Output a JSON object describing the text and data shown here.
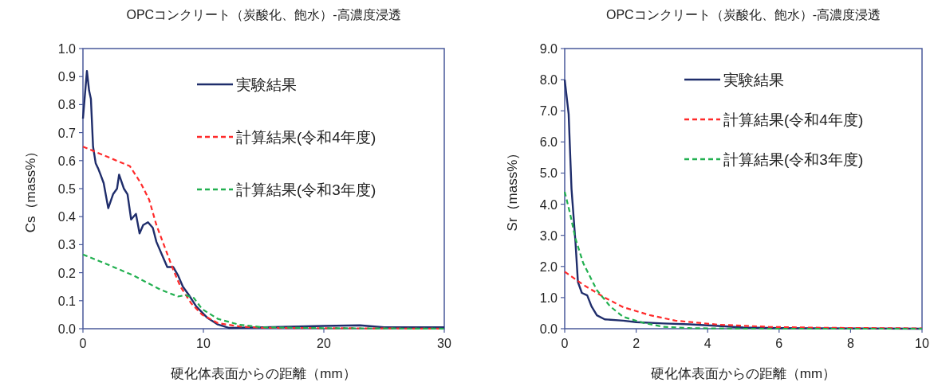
{
  "chart_data": [
    {
      "type": "line",
      "title": "OPCコンクリート（炭酸化、飽水）-高濃度浸透",
      "xlabel": "硬化体表面からの距離（mm）",
      "ylabel": "Cs（mass%）",
      "legend": "top right",
      "grid": false,
      "marker": "none",
      "xlim": [
        0,
        30
      ],
      "xticks": [
        0,
        10,
        20,
        30
      ],
      "ylim": [
        0,
        1.0
      ],
      "yticks": [
        {
          "value": 0,
          "label": "0.0"
        },
        0.1,
        0.2,
        0.3,
        0.4,
        0.5,
        0.6,
        0.7,
        0.8,
        0.9,
        {
          "value": 1.0,
          "label": "1.0"
        }
      ],
      "series": [
        {
          "name": "実験結果",
          "color": "#1f2d6b",
          "line_style": "solid",
          "x": [
            0,
            0.33,
            0.51,
            0.66,
            0.84,
            1.06,
            1.28,
            1.46,
            1.72,
            2.1,
            2.5,
            2.83,
            3.0,
            3.4,
            3.7,
            4.0,
            4.4,
            4.7,
            5.0,
            5.4,
            5.8,
            6.1,
            6.6,
            7.0,
            7.5,
            7.9,
            8.3,
            8.8,
            9.4,
            10.3,
            11.2,
            12.1,
            15,
            20,
            23,
            25,
            30
          ],
          "values": [
            0.75,
            0.92,
            0.85,
            0.82,
            0.65,
            0.59,
            0.57,
            0.55,
            0.52,
            0.43,
            0.48,
            0.5,
            0.55,
            0.5,
            0.48,
            0.39,
            0.41,
            0.34,
            0.37,
            0.38,
            0.36,
            0.31,
            0.26,
            0.22,
            0.22,
            0.19,
            0.15,
            0.12,
            0.08,
            0.04,
            0.015,
            0.003,
            0.005,
            0.01,
            0.012,
            0.005,
            0.005
          ]
        },
        {
          "name": "計算結果(令和4年度)",
          "color": "#ff2a2a",
          "line_style": "dashed",
          "x": [
            0,
            3.9,
            4.8,
            5.5,
            6.1,
            6.8,
            7.5,
            8.1,
            9.0,
            9.9,
            11.2,
            13.0,
            15,
            30
          ],
          "values": [
            0.65,
            0.58,
            0.52,
            0.46,
            0.37,
            0.29,
            0.21,
            0.15,
            0.09,
            0.05,
            0.02,
            0.008,
            0.003,
            0
          ]
        },
        {
          "name": "計算結果(令和3年度)",
          "color": "#22b050",
          "line_style": "dashed",
          "x": [
            0,
            2.0,
            4.2,
            6.4,
            7.9,
            8.5,
            9.2,
            9.9,
            11.2,
            13.0,
            15,
            20,
            30
          ],
          "values": [
            0.265,
            0.23,
            0.19,
            0.14,
            0.115,
            0.12,
            0.11,
            0.07,
            0.035,
            0.014,
            0.005,
            0.002,
            0
          ]
        }
      ]
    },
    {
      "type": "line",
      "title": "OPCコンクリート（炭酸化、飽水）-高濃度浸透",
      "xlabel": "硬化体表面からの距離（mm）",
      "ylabel": "Sr（mass%）",
      "legend": "top right",
      "grid": false,
      "marker": "none",
      "xlim": [
        0,
        10
      ],
      "xticks": [
        0,
        2,
        4,
        6,
        8,
        10
      ],
      "ylim": [
        0,
        9.0
      ],
      "yticks": [
        {
          "value": 0,
          "label": "0.0"
        },
        {
          "value": 1,
          "label": "1.0"
        },
        {
          "value": 2,
          "label": "2.0"
        },
        {
          "value": 3,
          "label": "3.0"
        },
        {
          "value": 4,
          "label": "4.0"
        },
        {
          "value": 5,
          "label": "5.0"
        },
        {
          "value": 6,
          "label": "6.0"
        },
        {
          "value": 7,
          "label": "7.0"
        },
        {
          "value": 8,
          "label": "8.0"
        },
        {
          "value": 9,
          "label": "9.0"
        }
      ],
      "series": [
        {
          "name": "実験結果",
          "color": "#1f2d6b",
          "line_style": "solid",
          "x": [
            0,
            0.11,
            0.19,
            0.3,
            0.37,
            0.48,
            0.63,
            0.75,
            0.9,
            1.12,
            1.64,
            2.0,
            2.76,
            3.5,
            4.3,
            5.0,
            6.0,
            10
          ],
          "values": [
            8.0,
            6.9,
            4.5,
            2.8,
            1.5,
            1.15,
            1.07,
            0.72,
            0.43,
            0.3,
            0.26,
            0.21,
            0.17,
            0.14,
            0.09,
            0.04,
            0.02,
            0
          ]
        },
        {
          "name": "計算結果(令和4年度)",
          "color": "#ff2a2a",
          "line_style": "dashed",
          "x": [
            0,
            0.52,
            1.12,
            1.64,
            2.4,
            3.1,
            4.3,
            5.7,
            7.2,
            10
          ],
          "values": [
            1.83,
            1.41,
            1.0,
            0.69,
            0.43,
            0.26,
            0.13,
            0.06,
            0.03,
            0.01
          ]
        },
        {
          "name": "計算結果(令和3年度)",
          "color": "#22b050",
          "line_style": "dashed",
          "x": [
            0,
            0.15,
            0.3,
            0.52,
            0.9,
            1.27,
            1.64,
            2.2,
            2.76,
            3.5,
            5,
            10
          ],
          "values": [
            4.4,
            3.7,
            2.9,
            2.1,
            1.24,
            0.72,
            0.38,
            0.19,
            0.06,
            0.02,
            0,
            0
          ]
        }
      ]
    }
  ]
}
